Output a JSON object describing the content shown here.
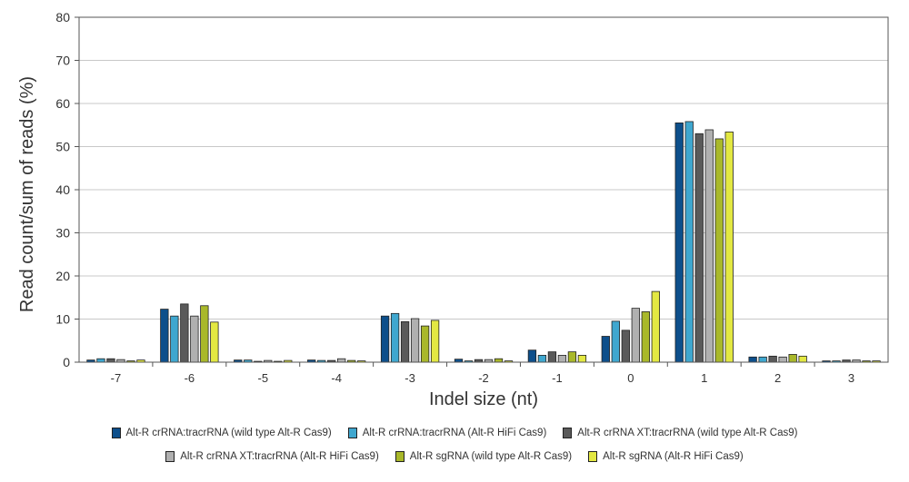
{
  "chart_data": {
    "type": "bar",
    "title": "",
    "xlabel": "Indel size (nt)",
    "ylabel": "Read count/sum of reads (%)",
    "ylim": [
      0,
      80
    ],
    "yticks": [
      0,
      10,
      20,
      30,
      40,
      50,
      60,
      70,
      80
    ],
    "grid": true,
    "legend_position": "bottom",
    "categories": [
      "-7",
      "-6",
      "-5",
      "-4",
      "-3",
      "-2",
      "-1",
      "0",
      "1",
      "2",
      "3"
    ],
    "series": [
      {
        "name": "Alt-R crRNA:tracrRNA (wild type Alt-R Cas9)",
        "color": "#0d4f8b",
        "values": [
          0.5,
          12.3,
          0.5,
          0.5,
          10.7,
          0.7,
          2.8,
          6.0,
          55.5,
          1.2,
          0.3
        ]
      },
      {
        "name": "Alt-R crRNA:tracrRNA (Alt-R HiFi Cas9)",
        "color": "#3fa7cf",
        "values": [
          0.8,
          10.7,
          0.5,
          0.4,
          11.3,
          0.3,
          1.6,
          9.5,
          55.8,
          1.2,
          0.3
        ]
      },
      {
        "name": "Alt-R crRNA XT:tracrRNA (wild type Alt-R Cas9)",
        "color": "#5a5a5a",
        "values": [
          0.8,
          13.5,
          0.2,
          0.4,
          9.4,
          0.6,
          2.4,
          7.4,
          53.0,
          1.4,
          0.5
        ]
      },
      {
        "name": "Alt-R crRNA XT:tracrRNA (Alt-R HiFi Cas9)",
        "color": "#b0b0b0",
        "values": [
          0.6,
          10.7,
          0.4,
          0.8,
          10.1,
          0.6,
          1.6,
          12.5,
          53.9,
          1.2,
          0.5
        ]
      },
      {
        "name": "Alt-R sgRNA (wild type Alt-R Cas9)",
        "color": "#a9b82a",
        "values": [
          0.3,
          13.1,
          0.2,
          0.4,
          8.4,
          0.8,
          2.4,
          11.7,
          51.8,
          1.8,
          0.3
        ]
      },
      {
        "name": "Alt-R sgRNA (Alt-R HiFi Cas9)",
        "color": "#e3e842",
        "values": [
          0.5,
          9.3,
          0.4,
          0.3,
          9.7,
          0.3,
          1.6,
          16.4,
          53.4,
          1.4,
          0.3
        ]
      }
    ]
  }
}
